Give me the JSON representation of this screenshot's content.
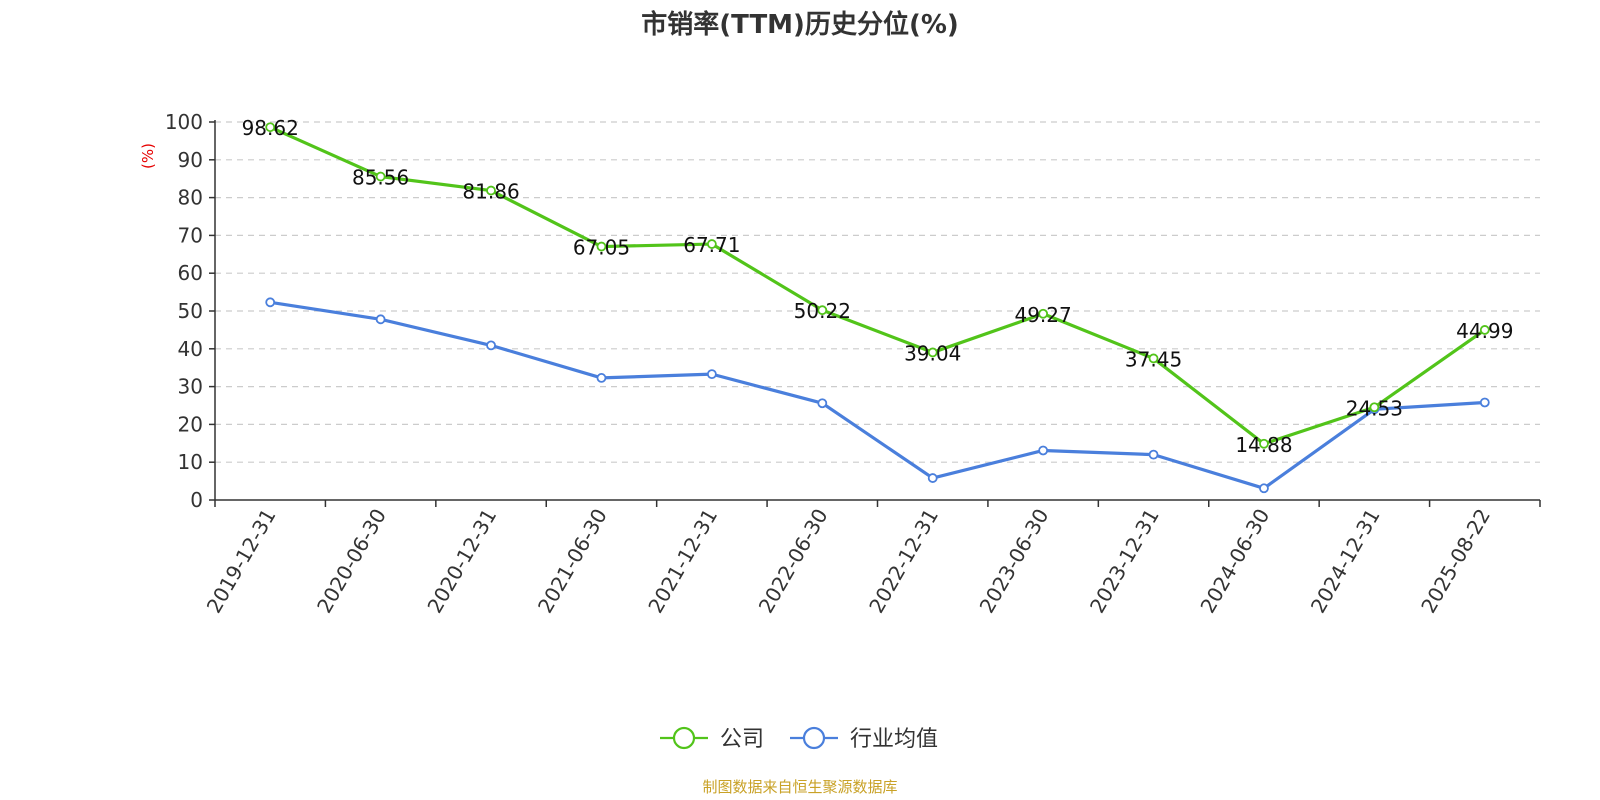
{
  "chart_data": {
    "type": "line",
    "title": "市销率(TTM)历史分位(%)",
    "ylabel": "(%)",
    "xlabel": "",
    "ylim": [
      0,
      100
    ],
    "yticks": [
      0,
      10,
      20,
      30,
      40,
      50,
      60,
      70,
      80,
      90,
      100
    ],
    "grid": true,
    "legend_position": "bottom-center",
    "categories": [
      "2019-12-31",
      "2020-06-30",
      "2020-12-31",
      "2021-06-30",
      "2021-12-31",
      "2022-06-30",
      "2022-12-31",
      "2023-06-30",
      "2023-12-31",
      "2024-06-30",
      "2024-12-31",
      "2025-08-22"
    ],
    "series": [
      {
        "name": "公司",
        "color": "#52c41a",
        "values": [
          98.62,
          85.56,
          81.86,
          67.05,
          67.71,
          50.22,
          39.04,
          49.27,
          37.45,
          14.88,
          24.53,
          44.99
        ],
        "labels": [
          "98.62",
          "85.56",
          "81.86",
          "67.05",
          "67.71",
          "50.22",
          "39.04",
          "49.27",
          "37.45",
          "14.88",
          "24.53",
          "44.99"
        ]
      },
      {
        "name": "行业均值",
        "color": "#4a7fdc",
        "values": [
          52.3,
          47.8,
          40.9,
          32.3,
          33.3,
          25.6,
          5.8,
          13.1,
          12.0,
          3.1,
          24.0,
          25.8
        ]
      }
    ]
  },
  "source": {
    "text": "制图数据来自恒生聚源数据库",
    "color": "#c9a227"
  },
  "colors": {
    "axis": "#333333",
    "grid": "#cccccc",
    "ylabel": "#e60000"
  }
}
